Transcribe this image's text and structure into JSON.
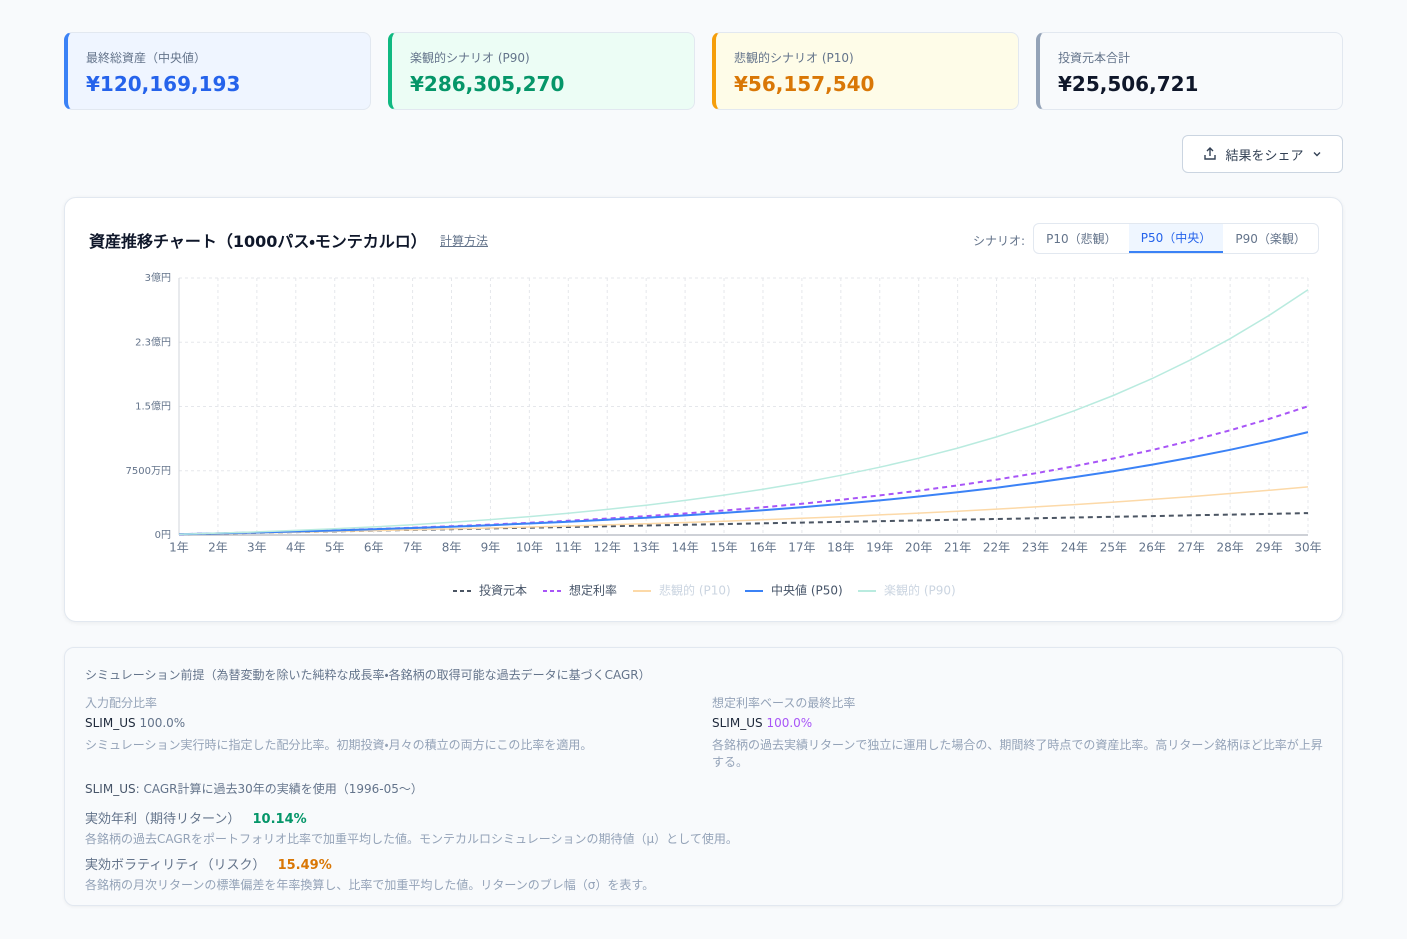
{
  "cards": [
    {
      "label": "最終総資産（中央値）",
      "value": "¥120,169,193"
    },
    {
      "label": "楽観的シナリオ (P90)",
      "value": "¥286,305,270"
    },
    {
      "label": "悲観的シナリオ (P10)",
      "value": "¥56,157,540"
    },
    {
      "label": "投資元本合計",
      "value": "¥25,506,721"
    }
  ],
  "share_button": "結果をシェア",
  "chart_data": {
    "type": "line",
    "title": "資産推移チャート（1000パス・モンテカルロ）",
    "link": "計算方法",
    "scenario_label": "シナリオ:",
    "scenario_tabs": [
      "P10（悲観）",
      "P50（中央）",
      "P90（楽観）"
    ],
    "active_tab": 1,
    "categories": [
      "1年",
      "2年",
      "3年",
      "4年",
      "5年",
      "6年",
      "7年",
      "8年",
      "9年",
      "10年",
      "11年",
      "12年",
      "13年",
      "14年",
      "15年",
      "16年",
      "17年",
      "18年",
      "19年",
      "20年",
      "21年",
      "22年",
      "23年",
      "24年",
      "25年",
      "26年",
      "27年",
      "28年",
      "29年",
      "30年"
    ],
    "ylim": [
      0,
      300000000
    ],
    "yticks": [
      {
        "value": 0,
        "label": "0円"
      },
      {
        "value": 75000000,
        "label": "7500万円"
      },
      {
        "value": 150000000,
        "label": "1.5億円"
      },
      {
        "value": 225000000,
        "label": "2.3億円"
      },
      {
        "value": 300000000,
        "label": "3億円"
      }
    ],
    "grid": true,
    "series": [
      {
        "name": "投資元本",
        "color": "#4b5563",
        "dashed": true,
        "faded": false,
        "values": [
          850000,
          1700000,
          2550000,
          3400000,
          4250000,
          5100000,
          5950000,
          6800000,
          7650000,
          8500000,
          9350000,
          10200000,
          11050000,
          11900000,
          12750000,
          13600000,
          14450000,
          15300000,
          16150000,
          17000000,
          17850000,
          18700000,
          19550000,
          20400000,
          21250000,
          22100000,
          22950000,
          23800000,
          24650000,
          25506721
        ]
      },
      {
        "name": "想定利率",
        "color": "#a855f7",
        "dashed": true,
        "faded": false,
        "values": [
          890000,
          1870000,
          2950000,
          4130000,
          5440000,
          6880000,
          8470000,
          10220000,
          12140000,
          14270000,
          16600000,
          19170000,
          22010000,
          25130000,
          28560000,
          32350000,
          36520000,
          41110000,
          46170000,
          51740000,
          57870000,
          64630000,
          72070000,
          80270000,
          89300000,
          99240000,
          110200000,
          122260000,
          135540000,
          150180000
        ]
      },
      {
        "name": "悲観的 (P10)",
        "color": "#fcd9a8",
        "dashed": false,
        "faded": true,
        "values": [
          890000,
          1650000,
          2460000,
          3300000,
          4180000,
          5090000,
          6060000,
          7080000,
          8150000,
          9290000,
          10510000,
          11770000,
          13140000,
          14600000,
          16140000,
          17790000,
          19540000,
          21380000,
          23410000,
          25560000,
          27780000,
          30180000,
          32790000,
          35480000,
          38400000,
          41580000,
          44850000,
          48410000,
          52180000,
          56157540
        ]
      },
      {
        "name": "中央値 (P50)",
        "color": "#3b82f6",
        "dashed": false,
        "faded": false,
        "values": [
          890000,
          1860000,
          2910000,
          4040000,
          5290000,
          6640000,
          8120000,
          9730000,
          11470000,
          13380000,
          15450000,
          17720000,
          20190000,
          22880000,
          25800000,
          29000000,
          32490000,
          36290000,
          40440000,
          44960000,
          49890000,
          55270000,
          61140000,
          67540000,
          74520000,
          82130000,
          90440000,
          99490000,
          109370000,
          120169193
        ]
      },
      {
        "name": "楽観的 (P90)",
        "color": "#b9ebdf",
        "dashed": false,
        "faded": true,
        "values": [
          890000,
          2180000,
          3650000,
          5340000,
          7270000,
          9470000,
          11960000,
          14770000,
          17920000,
          21480000,
          25430000,
          29870000,
          34840000,
          40380000,
          46550000,
          53410000,
          61100000,
          69640000,
          79140000,
          89670000,
          101390000,
          114460000,
          128930000,
          145050000,
          162880000,
          182700000,
          204750000,
          229120000,
          256310000,
          286305270
        ]
      }
    ]
  },
  "assumptions": {
    "title": "シミュレーション前提（為替変動を除いた純粋な成長率・各銘柄の取得可能な過去データに基づくCAGR）",
    "left": {
      "heading": "入力配分比率",
      "ticker": "SLIM_US",
      "percent": "100.0%",
      "note": "シミュレーション実行時に指定した配分比率。初期投資・月々の積立の両方にこの比率を適用。"
    },
    "right": {
      "heading": "想定利率ベースの最終比率",
      "ticker": "SLIM_US",
      "percent": "100.0%",
      "note": "各銘柄の過去実績リターンで独立に運用した場合の、期間終了時点での資産比率。高リターン銘柄ほど比率が上昇する。"
    },
    "data_note": {
      "ticker": "SLIM_US",
      "text": ": CAGR計算に過去30年の実績を使用（1996-05〜）"
    },
    "return": {
      "label": "実効年利（期待リターン）",
      "value": "10.14%",
      "note": "各銘柄の過去CAGRをポートフォリオ比率で加重平均した値。モンテカルロシミュレーションの期待値（μ）として使用。"
    },
    "volatility": {
      "label": "実効ボラティリティ（リスク）",
      "value": "15.49%",
      "note": "各銘柄の月次リターンの標準偏差を年率換算し、比率で加重平均した値。リターンのブレ幅（σ）を表す。"
    }
  }
}
